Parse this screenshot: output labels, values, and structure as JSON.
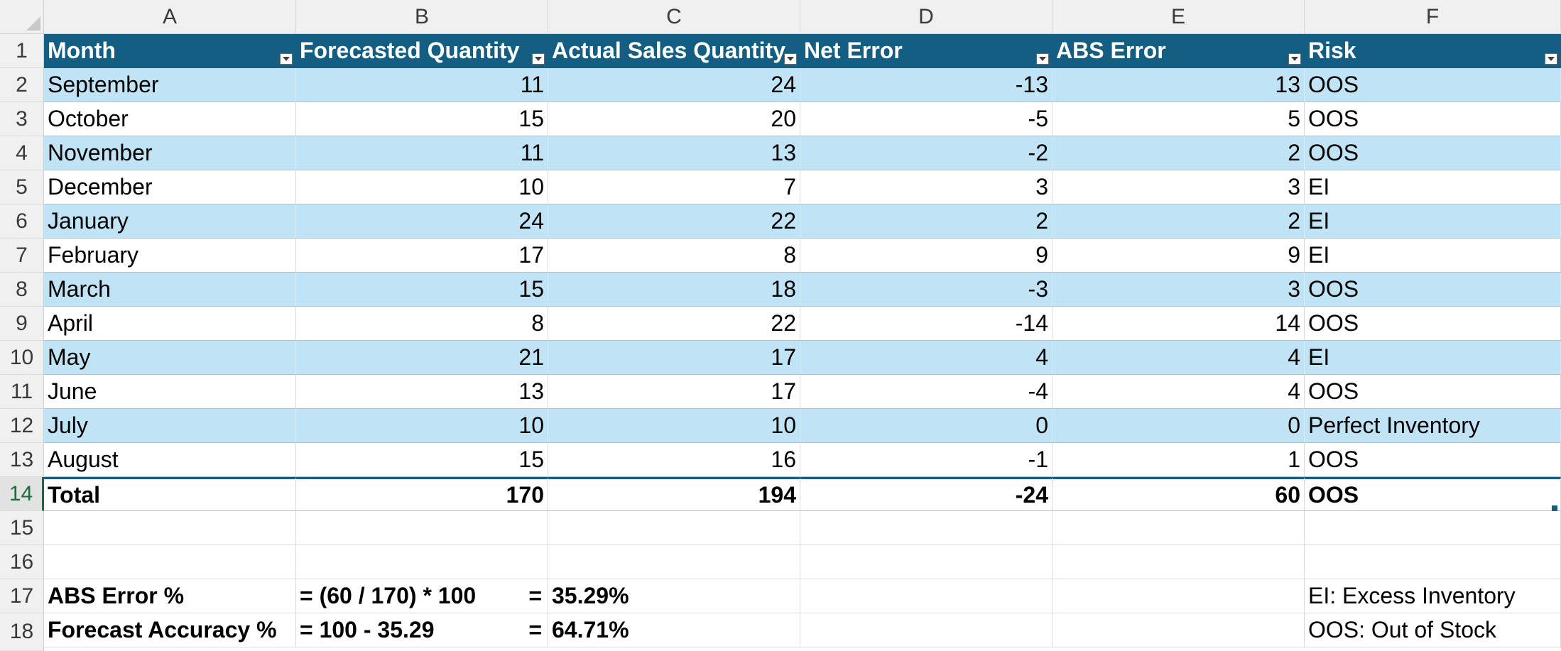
{
  "columns": [
    "A",
    "B",
    "C",
    "D",
    "E",
    "F"
  ],
  "row_numbers": [
    "1",
    "2",
    "3",
    "4",
    "5",
    "6",
    "7",
    "8",
    "9",
    "10",
    "11",
    "12",
    "13",
    "14",
    "15",
    "16",
    "17",
    "18"
  ],
  "header": {
    "month": "Month",
    "forecast": "Forecasted Quantity",
    "actual": "Actual Sales Quantity",
    "net_error": "Net Error",
    "abs_error": "ABS Error",
    "risk": "Risk"
  },
  "rows": [
    {
      "month": "September",
      "forecast": "11",
      "actual": "24",
      "net": "-13",
      "abs": "13",
      "risk": "OOS"
    },
    {
      "month": "October",
      "forecast": "15",
      "actual": "20",
      "net": "-5",
      "abs": "5",
      "risk": "OOS"
    },
    {
      "month": "November",
      "forecast": "11",
      "actual": "13",
      "net": "-2",
      "abs": "2",
      "risk": "OOS"
    },
    {
      "month": "December",
      "forecast": "10",
      "actual": "7",
      "net": "3",
      "abs": "3",
      "risk": "EI"
    },
    {
      "month": "January",
      "forecast": "24",
      "actual": "22",
      "net": "2",
      "abs": "2",
      "risk": "EI"
    },
    {
      "month": "February",
      "forecast": "17",
      "actual": "8",
      "net": "9",
      "abs": "9",
      "risk": "EI"
    },
    {
      "month": "March",
      "forecast": "15",
      "actual": "18",
      "net": "-3",
      "abs": "3",
      "risk": "OOS"
    },
    {
      "month": "April",
      "forecast": "8",
      "actual": "22",
      "net": "-14",
      "abs": "14",
      "risk": "OOS"
    },
    {
      "month": "May",
      "forecast": "21",
      "actual": "17",
      "net": "4",
      "abs": "4",
      "risk": "EI"
    },
    {
      "month": "June",
      "forecast": "13",
      "actual": "17",
      "net": "-4",
      "abs": "4",
      "risk": "OOS"
    },
    {
      "month": "July",
      "forecast": "10",
      "actual": "10",
      "net": "0",
      "abs": "0",
      "risk": "Perfect Inventory"
    },
    {
      "month": "August",
      "forecast": "15",
      "actual": "16",
      "net": "-1",
      "abs": "1",
      "risk": "OOS"
    }
  ],
  "total": {
    "label": "Total",
    "forecast": "170",
    "actual": "194",
    "net": "-24",
    "abs": "60",
    "risk": "OOS"
  },
  "summary": {
    "abs_label": "ABS Error %",
    "abs_formula": "= (60 / 170) * 100",
    "abs_eq": "=",
    "abs_value": "35.29%",
    "acc_label": "Forecast Accuracy %",
    "acc_formula": "= 100 - 35.29",
    "acc_eq": "=",
    "acc_value": "64.71%"
  },
  "legend": {
    "ei": "EI: Excess Inventory",
    "oos": "OOS: Out of Stock"
  },
  "colors": {
    "header_bg": "#155e83",
    "band_bg": "#c0e4f5",
    "active_row": "#1d6b3a"
  }
}
